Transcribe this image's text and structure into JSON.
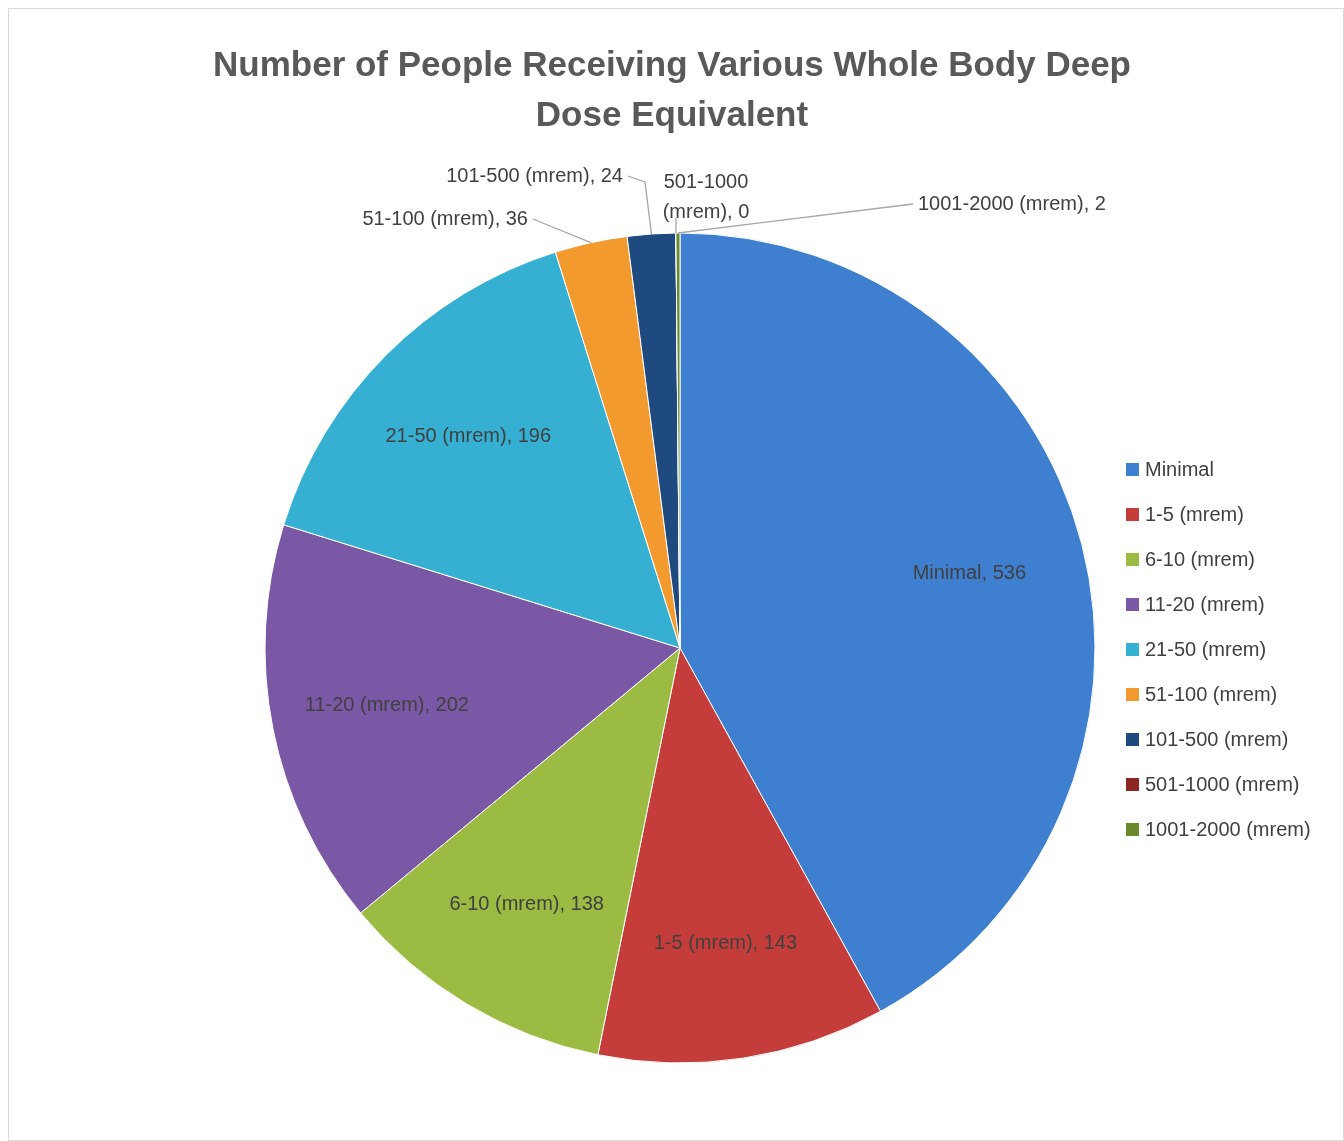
{
  "chart_data": {
    "type": "pie",
    "title": "Number of People Receiving Various Whole Body Deep Dose Equivalent",
    "categories": [
      "Minimal",
      "1-5 (mrem)",
      "6-10 (mrem)",
      "11-20 (mrem)",
      "21-50 (mrem)",
      "51-100 (mrem)",
      "101-500 (mrem)",
      "501-1000 (mrem)",
      "1001-2000 (mrem)"
    ],
    "values": [
      536,
      143,
      138,
      202,
      196,
      36,
      24,
      0,
      2
    ],
    "colors": [
      "#3f7fd0",
      "#c53d3a",
      "#9bbb42",
      "#7b58a6",
      "#35afd2",
      "#f29a2e",
      "#1f4a7f",
      "#8e2420",
      "#6b8a2c"
    ],
    "value_labels": [
      "Minimal, 536",
      "1-5 (mrem), 143",
      "6-10 (mrem), 138",
      "11-20 (mrem), 202",
      "21-50 (mrem), 196",
      "51-100 (mrem), 36",
      "101-500 (mrem), 24",
      "501-1000 (mrem), 0",
      "1001-2000 (mrem), 2"
    ],
    "legend": "right"
  }
}
